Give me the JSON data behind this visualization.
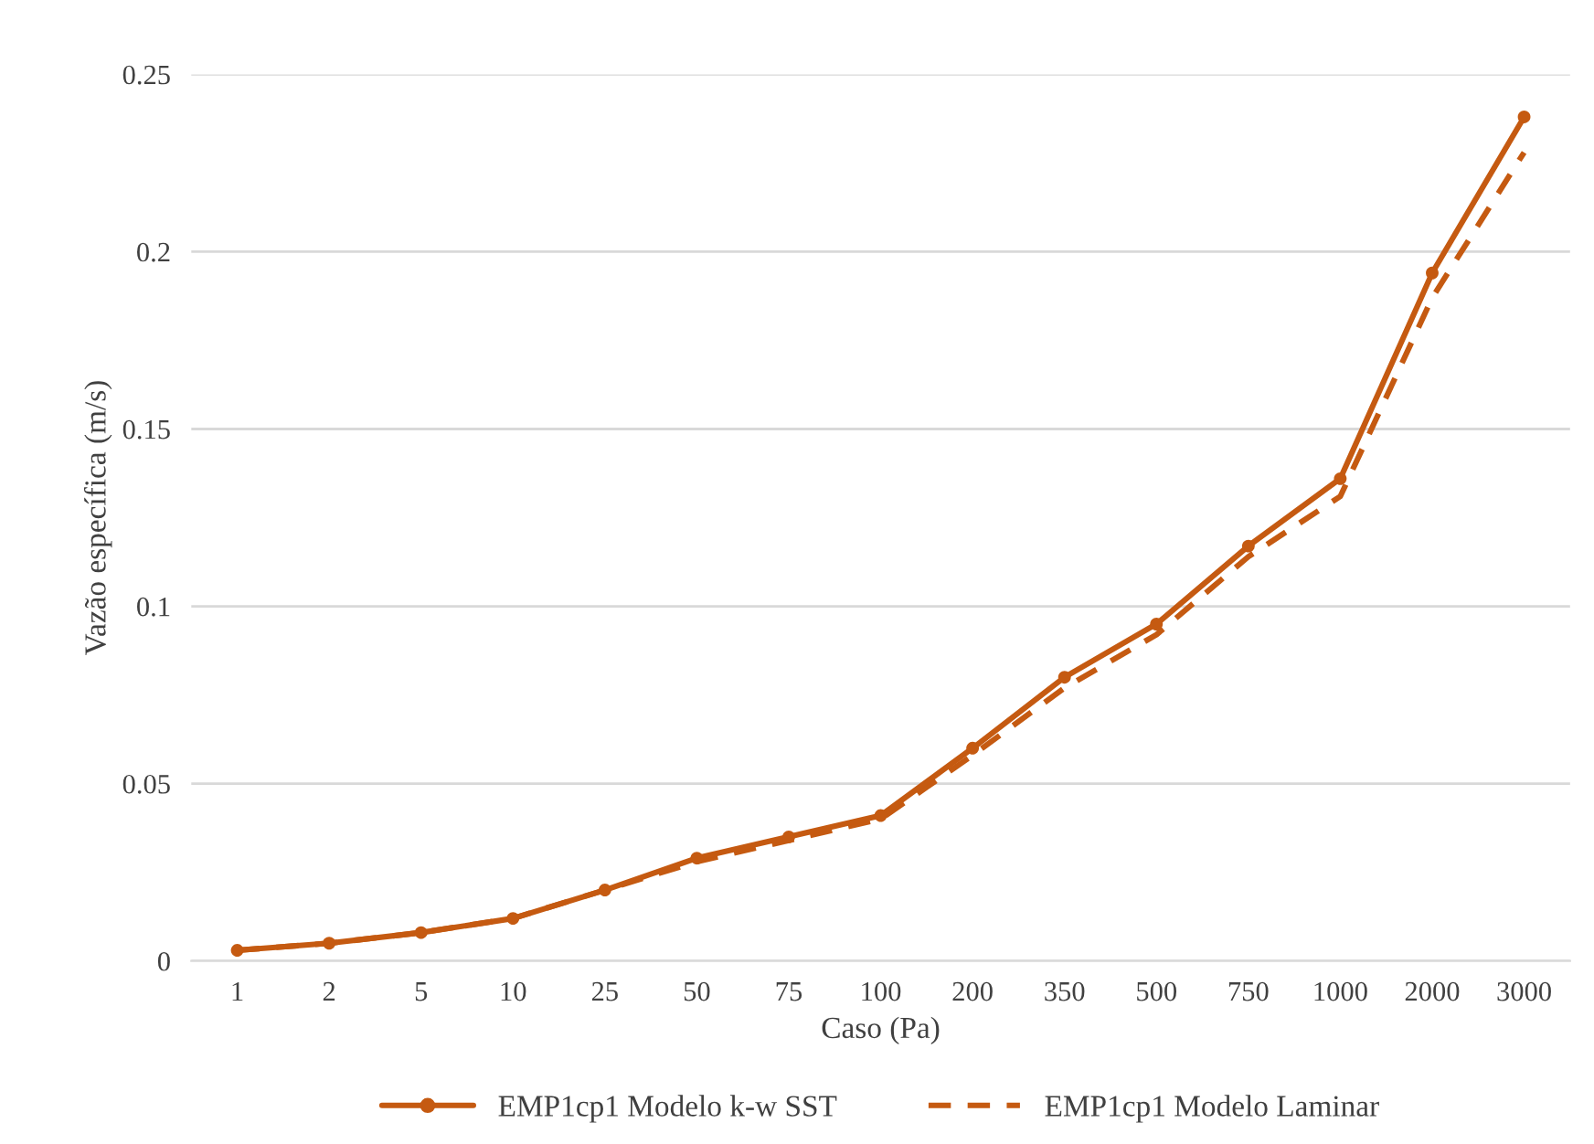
{
  "chart_data": {
    "type": "line",
    "xlabel": "Caso (Pa)",
    "ylabel": "Vazão específica (m/s)",
    "categories": [
      "1",
      "2",
      "5",
      "10",
      "25",
      "50",
      "75",
      "100",
      "200",
      "350",
      "500",
      "750",
      "1000",
      "2000",
      "3000"
    ],
    "series": [
      {
        "name": "EMP1cp1 Modelo k-w SST",
        "color": "#c55a11",
        "marker": "circle",
        "line_style": "solid",
        "values": [
          0.003,
          0.005,
          0.008,
          0.012,
          0.02,
          0.029,
          0.035,
          0.041,
          0.06,
          0.08,
          0.095,
          0.117,
          0.136,
          0.194,
          0.238
        ]
      },
      {
        "name": "EMP1cp1 Modelo Laminar",
        "color": "#c55a11",
        "marker": "none",
        "line_style": "dashed",
        "values": [
          0.003,
          0.005,
          0.008,
          0.012,
          0.02,
          0.028,
          0.034,
          0.04,
          0.058,
          0.077,
          0.092,
          0.114,
          0.131,
          0.187,
          0.228
        ]
      }
    ],
    "ylim": [
      0,
      0.25
    ],
    "yticks": [
      0,
      0.05,
      0.1,
      0.15,
      0.2,
      0.25
    ],
    "grid": "y",
    "legend": "bottom"
  }
}
